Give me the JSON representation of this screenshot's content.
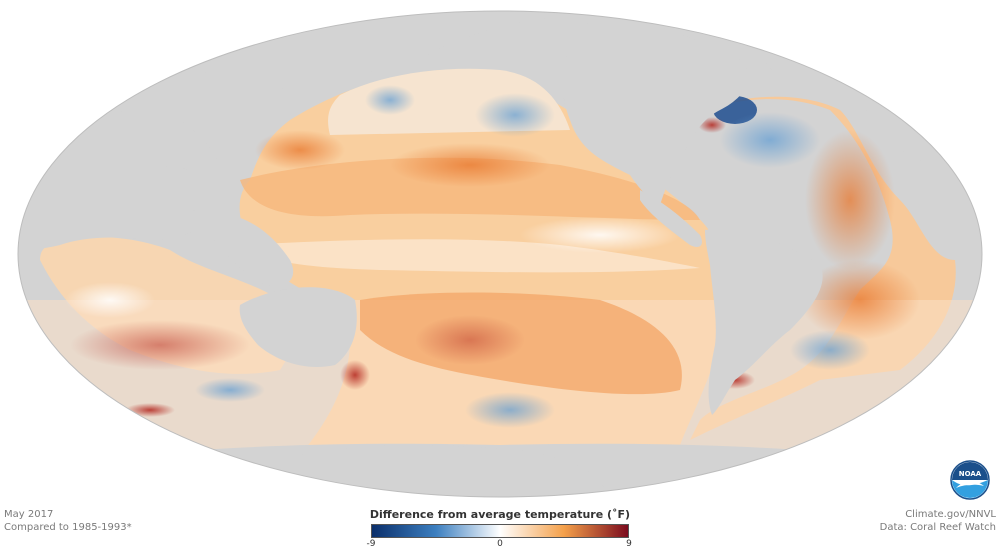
{
  "caption": {
    "date": "May 2017",
    "baseline": "Compared to 1985-1993*"
  },
  "credit": {
    "site": "Climate.gov/NNVL",
    "data_source": "Data: Coral Reef Watch"
  },
  "legend": {
    "title": "Difference from average temperature (˚F)",
    "min_label": "-9",
    "mid_label": "0",
    "max_label": "9",
    "range": [
      -9,
      9
    ],
    "colors": [
      "#0b2f6b",
      "#3c7fc0",
      "#ffffff",
      "#f4a04a",
      "#7b0b1e"
    ]
  },
  "logo": {
    "name": "noaa-logo",
    "text": "NOAA"
  },
  "colors": {
    "land": "#d3d3d3",
    "ocean_base": "#f8d2a6"
  }
}
